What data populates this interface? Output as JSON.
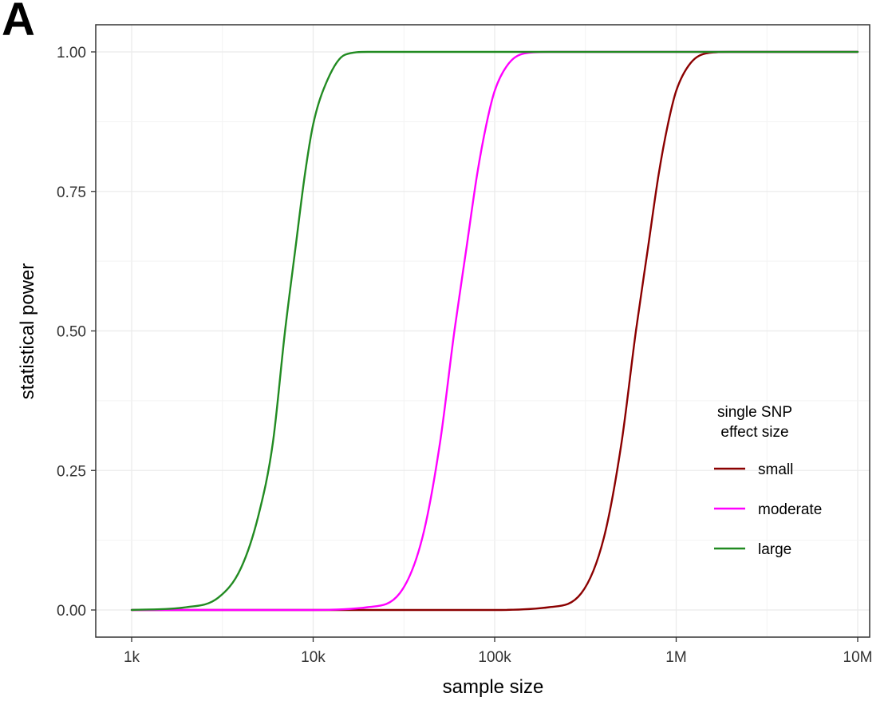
{
  "panel_label": "A",
  "chart_data": {
    "type": "line",
    "xscale": "log10",
    "xlabel": "sample size",
    "ylabel": "statistical power",
    "xlim": [
      1000,
      10000000
    ],
    "ylim": [
      0,
      1
    ],
    "x_ticks": [
      1000,
      10000,
      100000,
      1000000,
      10000000
    ],
    "x_tick_labels": [
      "1k",
      "10k",
      "100k",
      "1M",
      "10M"
    ],
    "y_ticks": [
      0,
      0.25,
      0.5,
      0.75,
      1
    ],
    "y_tick_labels": [
      "0.00",
      "0.25",
      "0.50",
      "0.75",
      "1.00"
    ],
    "grid": true,
    "legend": {
      "title_lines": [
        "single SNP",
        "effect size"
      ],
      "position": "right-inside"
    },
    "series": [
      {
        "name": "small",
        "color": "#8b0000",
        "x": [
          1000,
          100000,
          200000,
          300000,
          400000,
          500000,
          600000,
          700000,
          800000,
          900000,
          1000000,
          1200000,
          1500000,
          2000000,
          10000000
        ],
        "values": [
          0,
          0,
          0.005,
          0.03,
          0.13,
          0.3,
          0.5,
          0.65,
          0.78,
          0.87,
          0.93,
          0.98,
          0.998,
          1.0,
          1.0
        ]
      },
      {
        "name": "moderate",
        "color": "#ff00ff",
        "x": [
          1000,
          10000,
          20000,
          30000,
          40000,
          50000,
          60000,
          70000,
          80000,
          90000,
          100000,
          120000,
          150000,
          200000,
          10000000
        ],
        "values": [
          0,
          0,
          0.005,
          0.03,
          0.13,
          0.3,
          0.5,
          0.65,
          0.78,
          0.87,
          0.93,
          0.98,
          0.998,
          1.0,
          1.0
        ]
      },
      {
        "name": "large",
        "color": "#228b22",
        "x": [
          1000,
          2000,
          3000,
          4000,
          5000,
          6000,
          7000,
          8000,
          9000,
          10000,
          12000,
          15000,
          20000,
          10000000
        ],
        "values": [
          0,
          0.005,
          0.022,
          0.075,
          0.17,
          0.3,
          0.5,
          0.65,
          0.78,
          0.87,
          0.95,
          0.995,
          1.0,
          1.0
        ]
      }
    ]
  }
}
